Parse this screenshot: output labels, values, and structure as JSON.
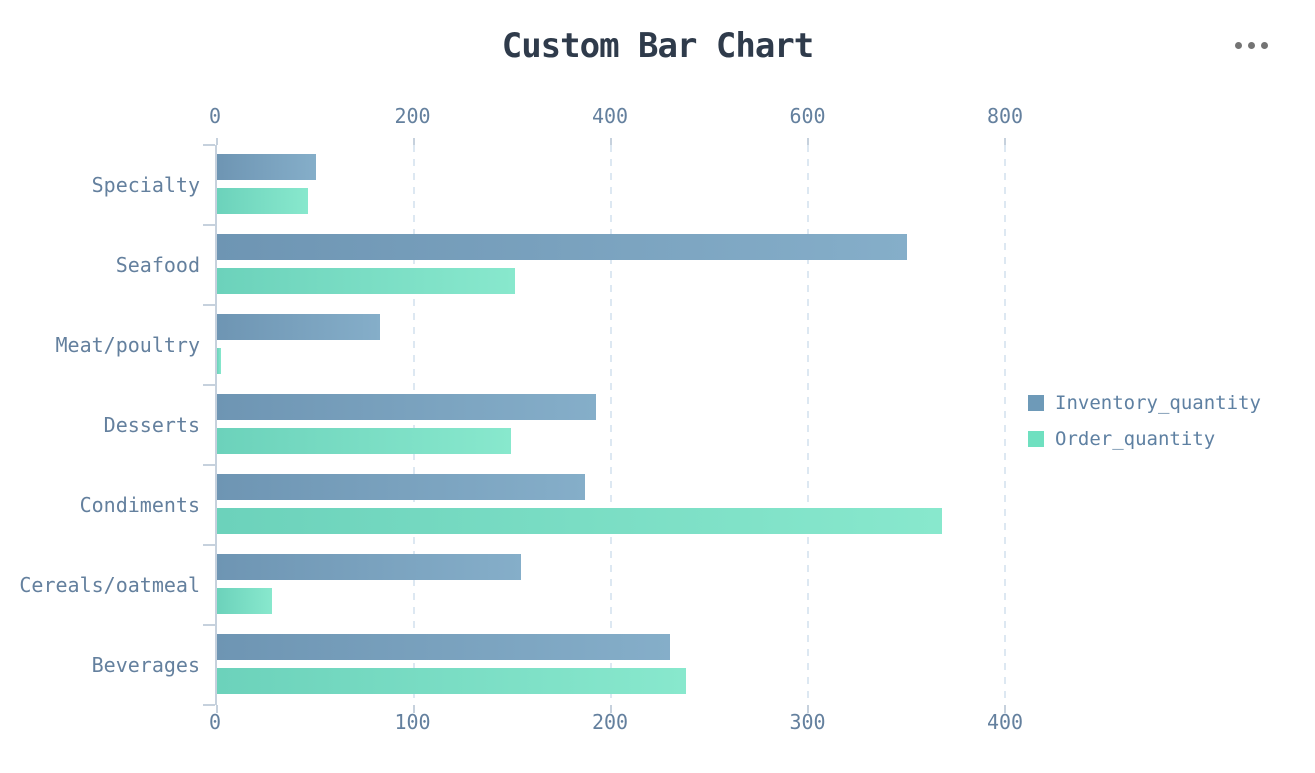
{
  "header": {
    "title": "Custom Bar Chart",
    "menu_icon": "ellipsis-icon"
  },
  "chart_data": {
    "type": "bar",
    "orientation": "horizontal",
    "title": "Custom Bar Chart",
    "categories": [
      "Specialty",
      "Seafood",
      "Meat/poultry",
      "Desserts",
      "Condiments",
      "Cereals/oatmeal",
      "Beverages"
    ],
    "series": [
      {
        "name": "Inventory_quantity",
        "axis": "top",
        "values": [
          100,
          700,
          165,
          385,
          373,
          308,
          460
        ],
        "color_start": "#6e95b3",
        "color_end": "#85aec9",
        "legend_color": "#6e9ab8"
      },
      {
        "name": "Order_quantity",
        "axis": "bottom",
        "values": [
          46,
          151,
          2,
          149,
          368,
          28,
          238
        ],
        "color_start": "#6cd2bb",
        "color_end": "#88e8cd",
        "legend_color": "#6fe0c0"
      }
    ],
    "axes": {
      "top": {
        "ticks": [
          0,
          200,
          400,
          600,
          800
        ],
        "range_max": 960
      },
      "bottom": {
        "ticks": [
          0,
          100,
          200,
          300,
          400
        ],
        "range_max": 480
      }
    },
    "grid": {
      "style": "dashed",
      "direction": "vertical"
    },
    "legend_position": "middle-right"
  },
  "colors": {
    "title_text": "#2f3b4b",
    "axis_text": "#64809e",
    "axis_line": "#c6d1dd",
    "gridline": "#dde8f2",
    "legend_text": "#5e80a2",
    "menu_dots": "#747474",
    "background": "#ffffff"
  }
}
